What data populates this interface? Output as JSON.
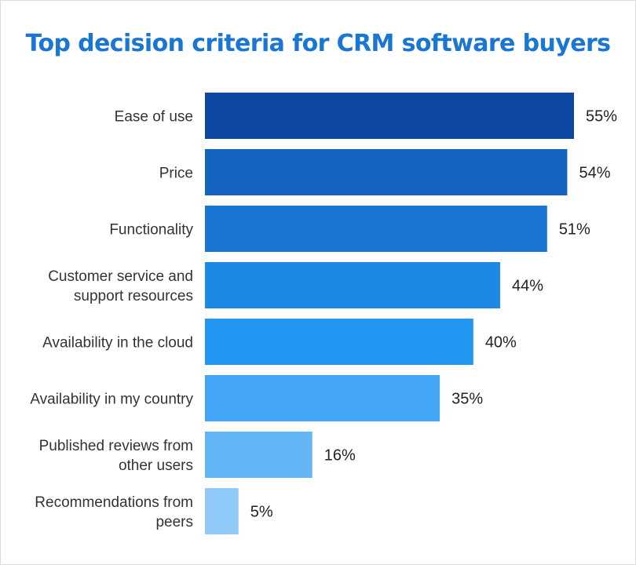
{
  "chart_data": {
    "type": "bar",
    "orientation": "horizontal",
    "title": "Top decision criteria for CRM software buyers",
    "categories": [
      [
        "Ease of use"
      ],
      [
        "Price"
      ],
      [
        "Functionality"
      ],
      [
        "Customer service and",
        "support resources"
      ],
      [
        "Availability in the cloud"
      ],
      [
        "Availability in my country"
      ],
      [
        "Published reviews from",
        "other users"
      ],
      [
        "Recommendations from",
        "peers"
      ]
    ],
    "values": [
      55,
      54,
      51,
      44,
      40,
      35,
      16,
      5
    ],
    "value_labels": [
      "55%",
      "54%",
      "51%",
      "44%",
      "40%",
      "35%",
      "16%",
      "5%"
    ],
    "unit": "%",
    "xlim": [
      0,
      55
    ],
    "grid": false,
    "legend": "none",
    "colors": [
      "#0d47a1",
      "#1565c0",
      "#1976d2",
      "#1e88e5",
      "#2196f3",
      "#42a5f5",
      "#64b5f6",
      "#90caf9"
    ],
    "title_color": "#1976d2"
  }
}
